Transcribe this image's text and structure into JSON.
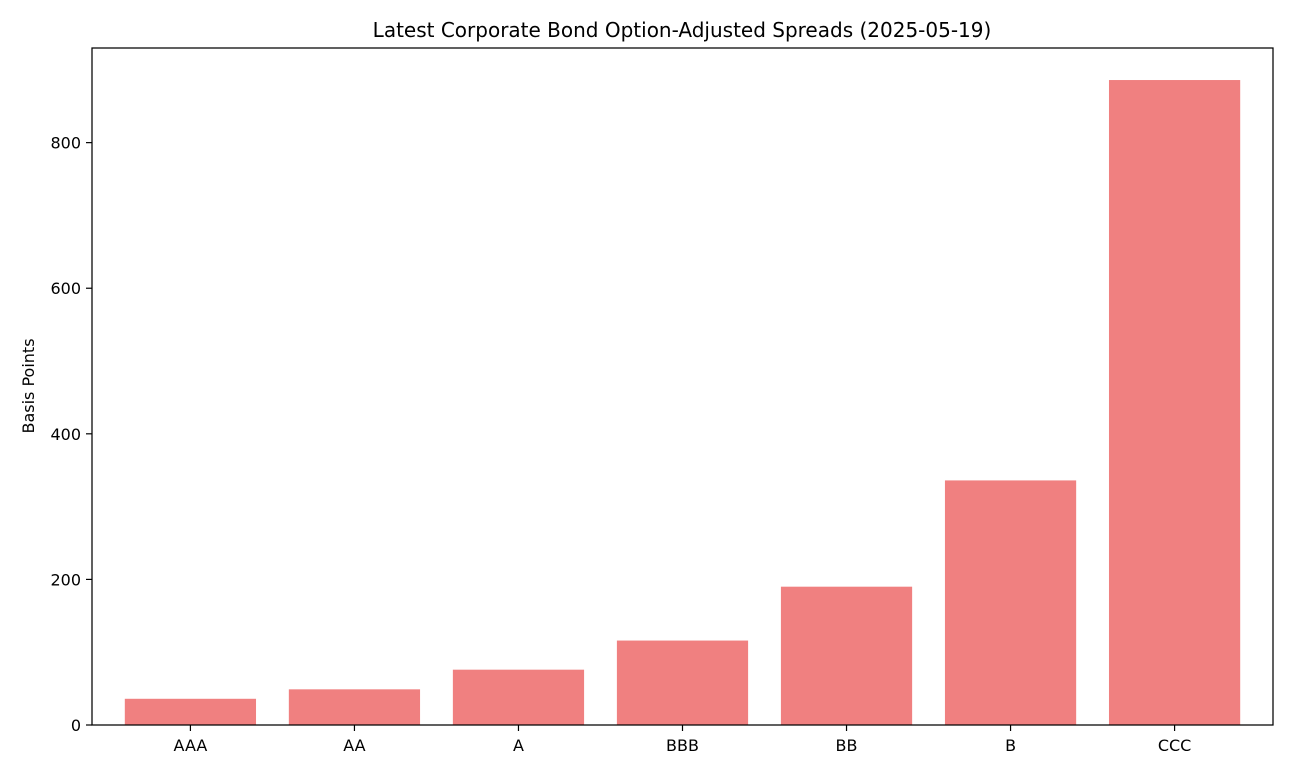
{
  "chart_data": {
    "type": "bar",
    "title": "Latest Corporate Bond Option-Adjusted Spreads (2025-05-19)",
    "xlabel": "",
    "ylabel": "Basis Points",
    "categories": [
      "AAA",
      "AA",
      "A",
      "BBB",
      "BB",
      "B",
      "CCC"
    ],
    "values": [
      36,
      49,
      76,
      116,
      190,
      336,
      886
    ],
    "ylim": [
      0,
      930
    ],
    "yticks": [
      0,
      200,
      400,
      600,
      800
    ],
    "grid": false,
    "bar_color": "#F08080",
    "axis_color": "#000000"
  }
}
